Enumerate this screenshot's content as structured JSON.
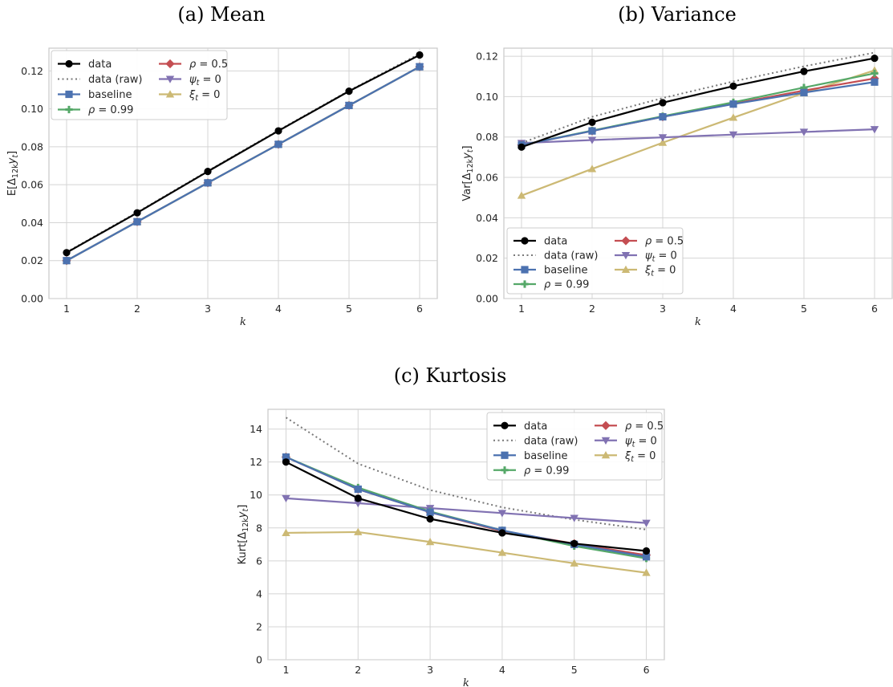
{
  "colors": {
    "data": "#000000",
    "data_raw": "#777777",
    "baseline": "#4C72B0",
    "rho099": "#55A868",
    "rho05": "#C44E52",
    "psi0": "#8172B2",
    "xi0": "#CCB974",
    "grid": "#d4d4d4",
    "spine": "#c8c8c8"
  },
  "legend": {
    "col1": [
      {
        "key": "data",
        "label": "data",
        "marker": "circle",
        "style": "solid"
      },
      {
        "key": "data_raw",
        "label": "data (raw)",
        "marker": "none",
        "style": "dotted"
      },
      {
        "key": "baseline",
        "label": "baseline",
        "marker": "square",
        "style": "solid"
      },
      {
        "key": "rho099",
        "label": "ρ = 0.99",
        "marker": "plus",
        "style": "solid"
      }
    ],
    "col2": [
      {
        "key": "rho05",
        "label": "ρ = 0.5",
        "marker": "diamond",
        "style": "solid"
      },
      {
        "key": "psi0",
        "label": "ψt = 0",
        "marker": "tri-down",
        "style": "solid"
      },
      {
        "key": "xi0",
        "label": "ξt = 0",
        "marker": "tri-up",
        "style": "solid"
      }
    ]
  },
  "chart_data": [
    {
      "type": "line",
      "title": "(a) Mean",
      "xlabel": "k",
      "ylabel": "E[Δ12kyt]",
      "x": [
        1,
        2,
        3,
        4,
        5,
        6
      ],
      "xlim": [
        0.75,
        6.25
      ],
      "ylim": [
        0,
        0.132
      ],
      "yticks": [
        "0.00",
        "0.02",
        "0.04",
        "0.06",
        "0.08",
        "0.10",
        "0.12"
      ],
      "legend_position": "upper-left",
      "series": [
        {
          "key": "data_raw",
          "name": "data (raw)",
          "values": [
            0.0245,
            0.0455,
            0.0673,
            0.0887,
            0.1096,
            0.129
          ]
        },
        {
          "key": "data",
          "name": "data",
          "values": [
            0.0242,
            0.0452,
            0.067,
            0.0884,
            0.1093,
            0.1284
          ]
        },
        {
          "key": "xi0",
          "name": "ξt = 0",
          "values": [
            0.02,
            0.0405,
            0.061,
            0.0813,
            0.1018,
            0.1222
          ]
        },
        {
          "key": "psi0",
          "name": "ψt = 0",
          "values": [
            0.02,
            0.0405,
            0.061,
            0.0813,
            0.1018,
            0.1222
          ]
        },
        {
          "key": "rho05",
          "name": "ρ = 0.5",
          "values": [
            0.02,
            0.0405,
            0.061,
            0.0813,
            0.1018,
            0.1222
          ]
        },
        {
          "key": "rho099",
          "name": "ρ = 0.99",
          "values": [
            0.02,
            0.0405,
            0.061,
            0.0813,
            0.1018,
            0.1222
          ]
        },
        {
          "key": "baseline",
          "name": "baseline",
          "values": [
            0.02,
            0.0405,
            0.061,
            0.0813,
            0.1018,
            0.1222
          ]
        }
      ]
    },
    {
      "type": "line",
      "title": "(b) Variance",
      "xlabel": "k",
      "ylabel": "Var[Δ12kyt]",
      "x": [
        1,
        2,
        3,
        4,
        5,
        6
      ],
      "xlim": [
        0.75,
        6.25
      ],
      "ylim": [
        0,
        0.124
      ],
      "yticks": [
        "0.00",
        "0.02",
        "0.04",
        "0.06",
        "0.08",
        "0.10",
        "0.12"
      ],
      "legend_position": "lower-left",
      "series": [
        {
          "key": "data_raw",
          "name": "data (raw)",
          "values": [
            0.077,
            0.09,
            0.0993,
            0.1075,
            0.115,
            0.1218
          ]
        },
        {
          "key": "xi0",
          "name": "ξt = 0",
          "values": [
            0.051,
            0.0642,
            0.0772,
            0.0896,
            0.1018,
            0.113
          ]
        },
        {
          "key": "psi0",
          "name": "ψt = 0",
          "values": [
            0.077,
            0.0785,
            0.0798,
            0.0812,
            0.0825,
            0.0838
          ]
        },
        {
          "key": "rho05",
          "name": "ρ = 0.5",
          "values": [
            0.076,
            0.083,
            0.09,
            0.0965,
            0.103,
            0.109
          ]
        },
        {
          "key": "rho099",
          "name": "ρ = 0.99",
          "values": [
            0.076,
            0.0832,
            0.0903,
            0.0972,
            0.1045,
            0.1115
          ]
        },
        {
          "key": "baseline",
          "name": "baseline",
          "values": [
            0.076,
            0.083,
            0.09,
            0.0963,
            0.102,
            0.1072
          ]
        },
        {
          "key": "data",
          "name": "data",
          "values": [
            0.075,
            0.0873,
            0.097,
            0.1052,
            0.1125,
            0.119
          ]
        }
      ]
    },
    {
      "type": "line",
      "title": "(c) Kurtosis",
      "xlabel": "k",
      "ylabel": "Kurt[Δ12kyt]",
      "x": [
        1,
        2,
        3,
        4,
        5,
        6
      ],
      "xlim": [
        0.75,
        6.25
      ],
      "ylim": [
        0,
        15.2
      ],
      "yticks": [
        "0",
        "2",
        "4",
        "6",
        "8",
        "10",
        "12",
        "14"
      ],
      "legend_position": "upper-right",
      "series": [
        {
          "key": "data_raw",
          "name": "data (raw)",
          "values": [
            14.7,
            11.9,
            10.3,
            9.25,
            8.5,
            7.9
          ]
        },
        {
          "key": "xi0",
          "name": "ξt = 0",
          "values": [
            7.7,
            7.75,
            7.15,
            6.5,
            5.85,
            5.28
          ]
        },
        {
          "key": "psi0",
          "name": "ψt = 0",
          "values": [
            9.8,
            9.5,
            9.2,
            8.9,
            8.6,
            8.3
          ]
        },
        {
          "key": "rho05",
          "name": "ρ = 0.5",
          "values": [
            12.3,
            10.35,
            8.95,
            7.8,
            7.05,
            6.35
          ]
        },
        {
          "key": "rho099",
          "name": "ρ = 0.99",
          "values": [
            12.3,
            10.45,
            9.0,
            7.85,
            6.9,
            6.15
          ]
        },
        {
          "key": "baseline",
          "name": "baseline",
          "values": [
            12.3,
            10.35,
            8.95,
            7.85,
            7.0,
            6.25
          ]
        },
        {
          "key": "data",
          "name": "data",
          "values": [
            12.0,
            9.8,
            8.55,
            7.7,
            7.05,
            6.6
          ]
        }
      ]
    }
  ]
}
